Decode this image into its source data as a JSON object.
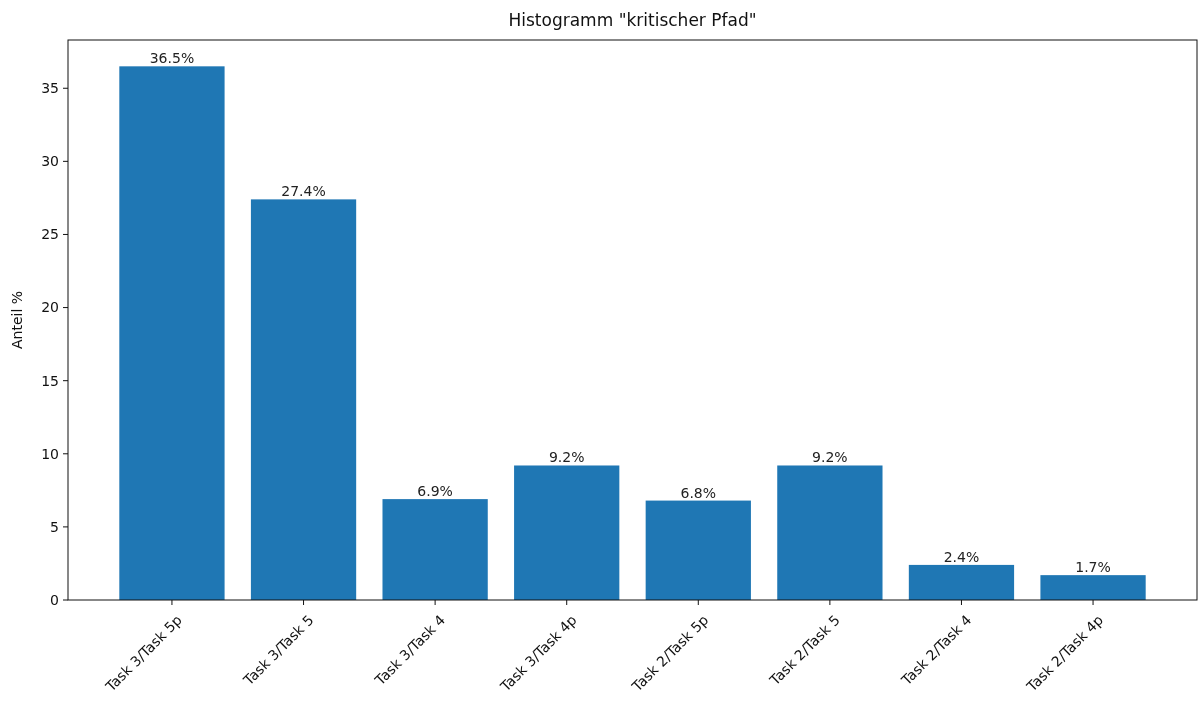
{
  "chart_data": {
    "type": "bar",
    "title": "Histogramm \"kritischer Pfad\"",
    "ylabel": "Anteil %",
    "categories": [
      "Task 3/Task 5p",
      "Task 3/Task 5",
      "Task 3/Task 4",
      "Task 3/Task 4p",
      "Task 2/Task 5p",
      "Task 2/Task 5",
      "Task 2/Task 4",
      "Task 2/Task 4p"
    ],
    "values": [
      36.5,
      27.4,
      6.9,
      9.2,
      6.8,
      9.2,
      2.4,
      1.7
    ],
    "value_labels": [
      "36.5%",
      "27.4%",
      "6.9%",
      "9.2%",
      "6.8%",
      "9.2%",
      "2.4%",
      "1.7%"
    ],
    "color": "#1f77b4",
    "ylim": [
      0,
      38.3
    ],
    "yticks": [
      0,
      5,
      10,
      15,
      20,
      25,
      30,
      35
    ]
  }
}
